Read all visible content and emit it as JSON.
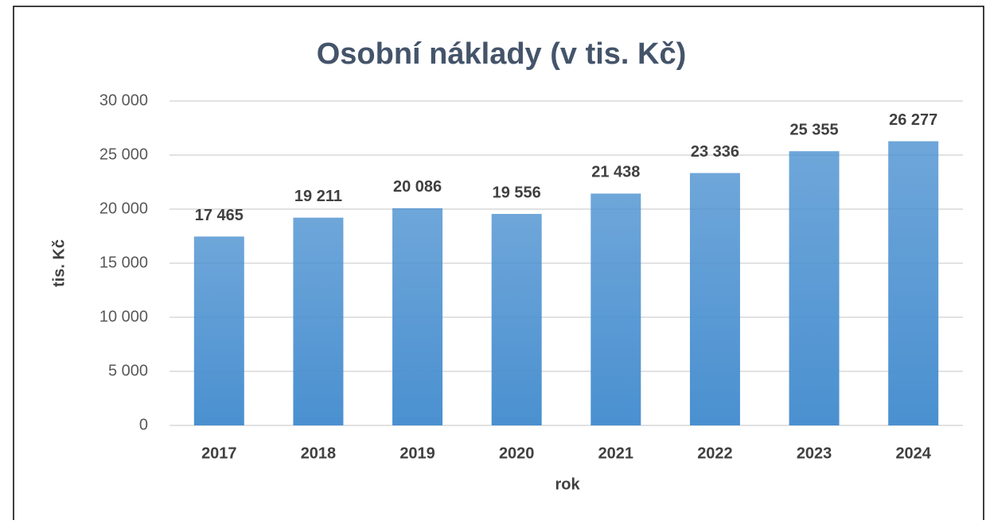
{
  "chart_data": {
    "type": "bar",
    "title": "Osobní náklady (v tis. Kč)",
    "x_label": "rok",
    "y_label": "tis. Kč",
    "categories": [
      "2017",
      "2018",
      "2019",
      "2020",
      "2021",
      "2022",
      "2023",
      "2024"
    ],
    "values": [
      17465,
      19211,
      20086,
      19556,
      21438,
      23336,
      25355,
      26277
    ],
    "value_labels": [
      "17 465",
      "19 211",
      "20 086",
      "19 556",
      "21 438",
      "23 336",
      "25 355",
      "26 277"
    ],
    "color": "#4a90d0",
    "ylim": [
      0,
      30000
    ],
    "yticks": [
      0,
      {
        "value": 5000,
        "label": "5 000"
      },
      {
        "value": 10000,
        "label": "10 000"
      },
      {
        "value": 15000,
        "label": "15 000"
      },
      {
        "value": 20000,
        "label": "20 000"
      },
      {
        "value": 25000,
        "label": "25 000"
      },
      {
        "value": 30000,
        "label": "30 000"
      }
    ],
    "grid": true
  }
}
